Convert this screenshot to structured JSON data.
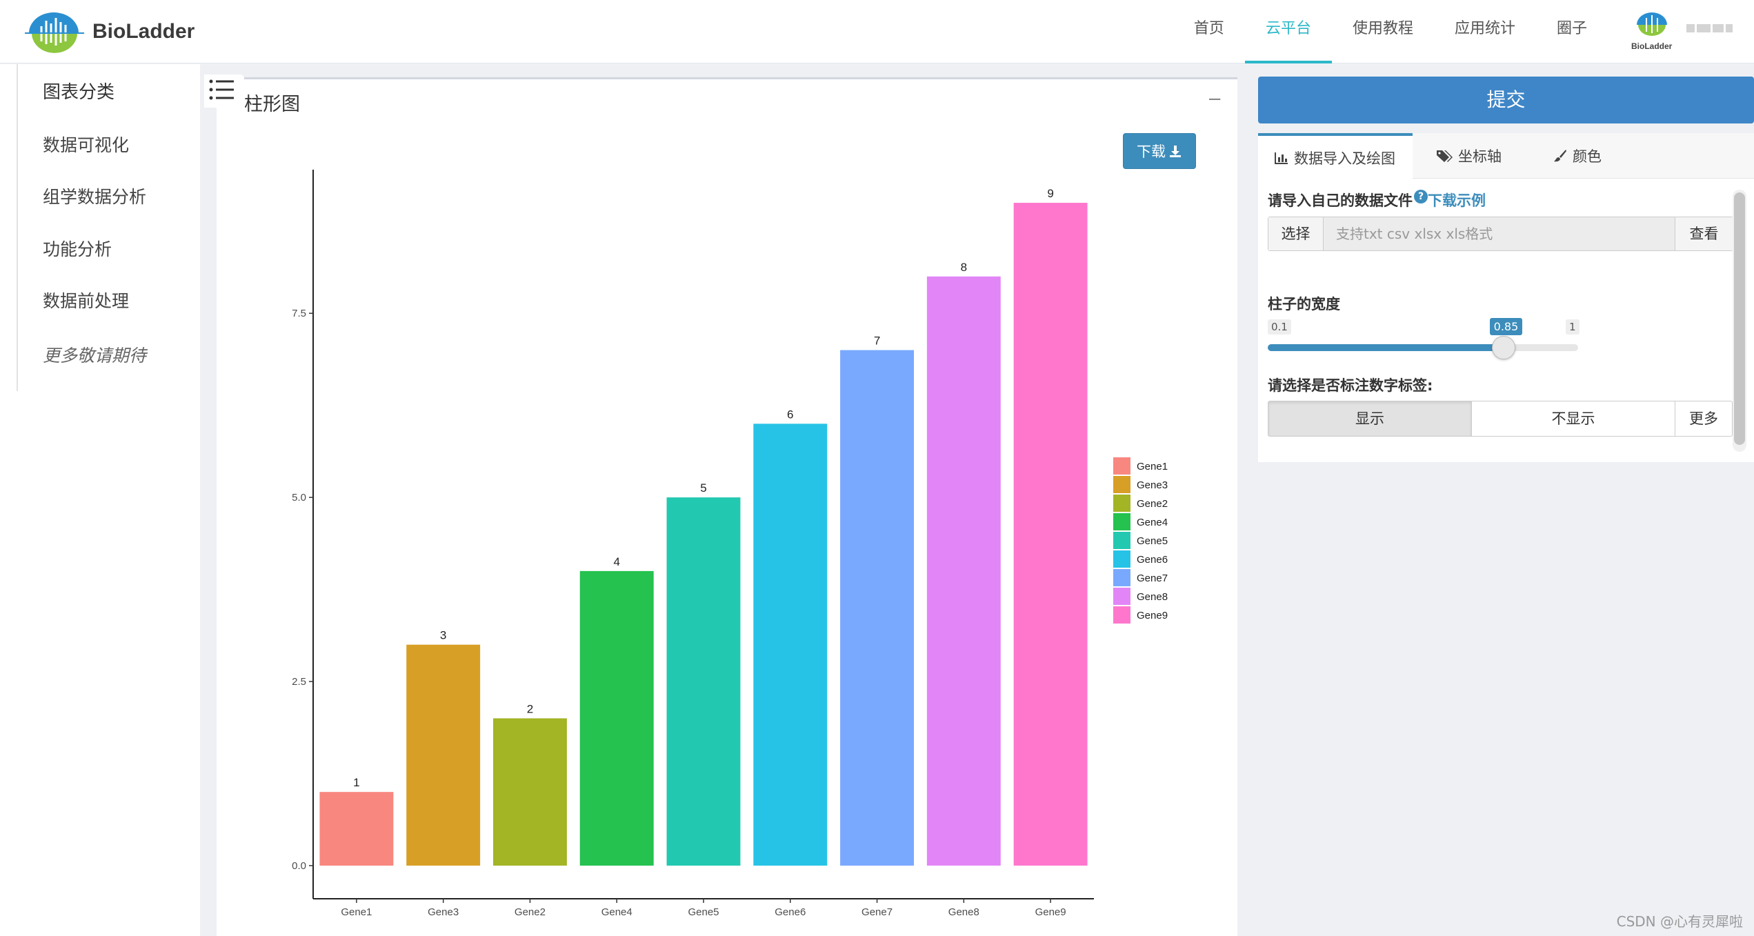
{
  "brand": {
    "name": "BioLadder",
    "mini_label": "BioLadder"
  },
  "nav": {
    "items": [
      {
        "label": "首页",
        "active": false
      },
      {
        "label": "云平台",
        "active": true
      },
      {
        "label": "使用教程",
        "active": false
      },
      {
        "label": "应用统计",
        "active": false
      },
      {
        "label": "圈子",
        "active": false
      }
    ]
  },
  "sidebar": {
    "header": "图表分类",
    "items": [
      "数据可视化",
      "组学数据分析",
      "功能分析",
      "数据前处理"
    ],
    "more": "更多敬请期待"
  },
  "panel": {
    "title": "柱形图",
    "minimize": "−",
    "download_label": "下载"
  },
  "chart_data": {
    "type": "bar",
    "categories": [
      "Gene1",
      "Gene3",
      "Gene2",
      "Gene4",
      "Gene5",
      "Gene6",
      "Gene7",
      "Gene8",
      "Gene9"
    ],
    "values": [
      1,
      3,
      2,
      4,
      5,
      6,
      7,
      8,
      9
    ],
    "colors": [
      "#F8877F",
      "#D89F26",
      "#A3B425",
      "#25C24F",
      "#22C9B0",
      "#26C3E6",
      "#79A9FF",
      "#E286F7",
      "#FF77CD"
    ],
    "value_labels": [
      "1",
      "3",
      "2",
      "4",
      "5",
      "6",
      "7",
      "8",
      "9"
    ],
    "yticks": [
      0.0,
      2.5,
      5.0,
      7.5
    ],
    "ytick_labels": [
      "0.0",
      "2.5",
      "5.0",
      "7.5"
    ],
    "ylim": [
      -0.45,
      9.45
    ],
    "legend": {
      "placement": "right",
      "entries": [
        "Gene1",
        "Gene3",
        "Gene2",
        "Gene4",
        "Gene5",
        "Gene6",
        "Gene7",
        "Gene8",
        "Gene9"
      ],
      "colors": [
        "#F8877F",
        "#D89F26",
        "#A3B425",
        "#25C24F",
        "#22C9B0",
        "#26C3E6",
        "#79A9FF",
        "#E286F7",
        "#FF77CD"
      ]
    },
    "xlabel": "",
    "ylabel": "",
    "title": "",
    "grid": false
  },
  "right": {
    "submit_label": "提交",
    "tabs": [
      {
        "label": "数据导入及绘图",
        "icon": "bar-chart-icon",
        "active": true
      },
      {
        "label": "坐标轴",
        "icon": "tags-icon",
        "active": false
      },
      {
        "label": "颜色",
        "icon": "paint-brush-icon",
        "active": false
      }
    ],
    "import": {
      "label": "请导入自己的数据文件",
      "help": "?",
      "example_link": "下载示例",
      "choose_label": "选择",
      "placeholder": "支持txt csv xlsx xls格式",
      "view_label": "查看"
    },
    "width": {
      "label": "柱子的宽度",
      "min_label": "0.1",
      "max_label": "1",
      "min": 0.1,
      "max": 1,
      "value": 0.85,
      "value_label": "0.85"
    },
    "labels": {
      "label": "请选择是否标注数字标签:",
      "options": [
        "显示",
        "不显示",
        "更多"
      ],
      "selected": "显示"
    }
  },
  "watermark": "CSDN @心有灵犀啦"
}
